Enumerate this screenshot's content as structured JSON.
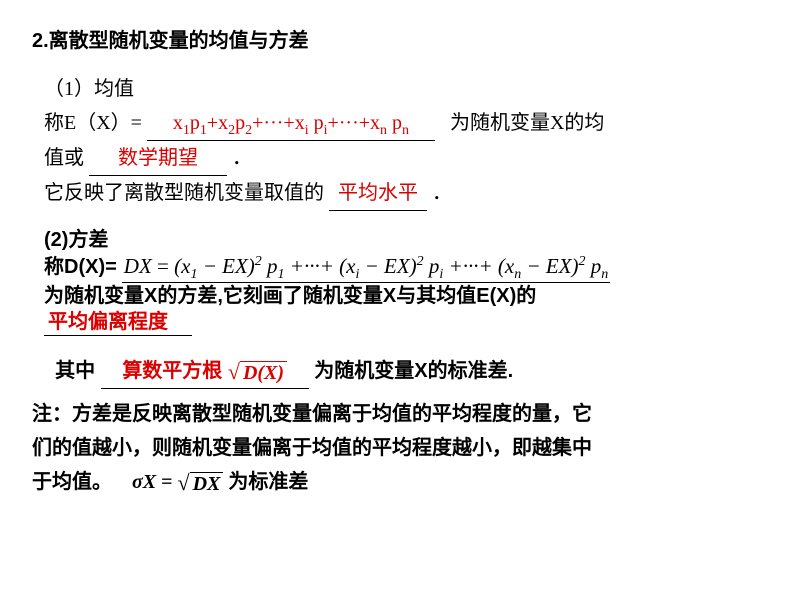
{
  "title": "2.离散型随机变量的均值与方差",
  "s1": {
    "heading": "（1）均值",
    "ex_prefix": "称E（X）=",
    "ex_formula_html": "x<span class='sub'>1</span>p<span class='sub'>1</span>+x<span class='sub'>2</span>p<span class='sub'>2</span>+···+x<span class='sub'>i</span> p<span class='sub'>i</span>+···+x<span class='sub'>n</span> p<span class='sub'>n</span>",
    "ex_suffix": "为随机变量X的均",
    "line2_a": "值或",
    "blank_expect": "数学期望",
    "line2_b": "．",
    "line3_a": "它反映了离散型随机变量取值的",
    "blank_avg": "平均水平",
    "line3_b": "．"
  },
  "s2": {
    "heading": "(2)方差",
    "dx_prefix": "称D(X)=",
    "dx_formula_html": "DX<span style='font-style:normal'> = </span>(x<span class='sub'>1</span> − EX)<span class='sup'>2</span> p<span class='sub'>1</span> +···+ (x<span class='sub'>i</span> − EX)<span class='sup'>2</span> p<span class='sub'>i</span> +···+ (x<span class='sub'>n</span> − EX)<span class='sup'>2</span> p<span class='sub'>n</span>",
    "line2": "为随机变量X的方差,它刻画了随机变量X与其均值E(X)的",
    "blank_dev": "平均偏离程度"
  },
  "s3": {
    "prefix": "其中",
    "blank_sqrt_label": "算数平方根",
    "sqrt_body": "D(X)",
    "suffix": "为随机变量X的标准差."
  },
  "note": {
    "l1": "注：方差是反映离散型随机变量偏离于均值的平均程度的量，它",
    "l2": "们的值越小，则随机变量偏离于均值的平均程度越小，即越集中",
    "l3": "于均值。",
    "sigma": "σX",
    "eq": " = ",
    "sqrt_body": "DX",
    "tail": "为标准差"
  },
  "colors": {
    "red": "#dc0000",
    "text": "#000000",
    "bg": "#ffffff"
  }
}
